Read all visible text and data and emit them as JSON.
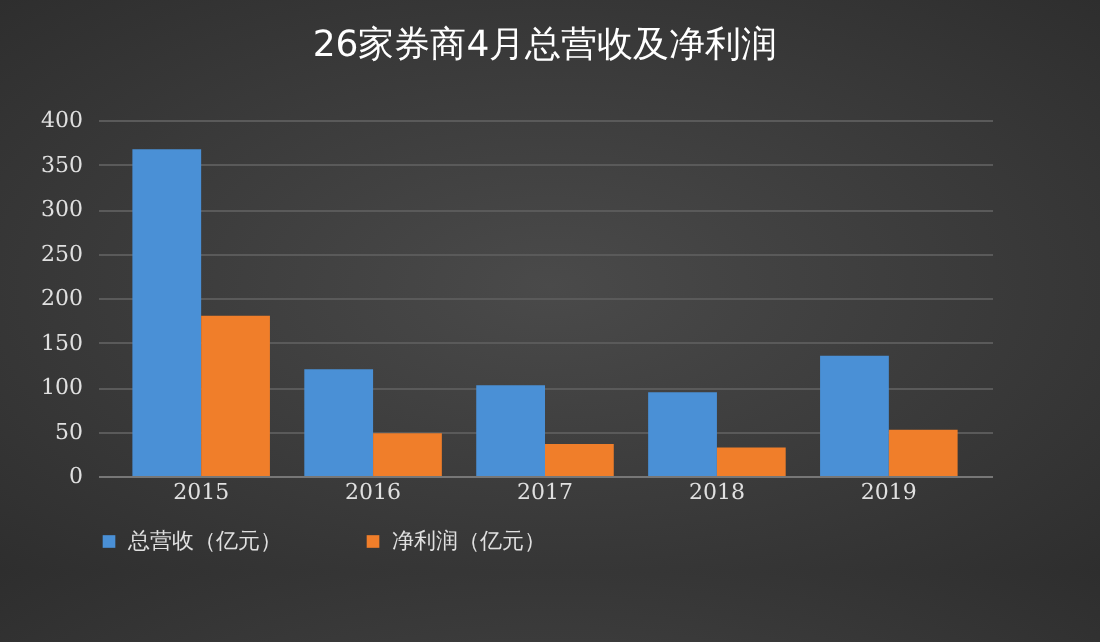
{
  "chart_data": {
    "type": "bar",
    "title": "26家券商4月总营收及净利润",
    "categories": [
      "2015",
      "2016",
      "2017",
      "2018",
      "2019"
    ],
    "series": [
      {
        "name": "总营收（亿元）",
        "color": "#4a90d6",
        "values": [
          367,
          120,
          102,
          94,
          135
        ]
      },
      {
        "name": "净利润（亿元）",
        "color": "#f07e2a",
        "values": [
          180,
          48,
          36,
          32,
          52
        ]
      }
    ],
    "ylim": [
      0,
      400
    ],
    "yticks": [
      0,
      50,
      100,
      150,
      200,
      250,
      300,
      350,
      400
    ],
    "grid": "y",
    "legend": "bottom"
  }
}
